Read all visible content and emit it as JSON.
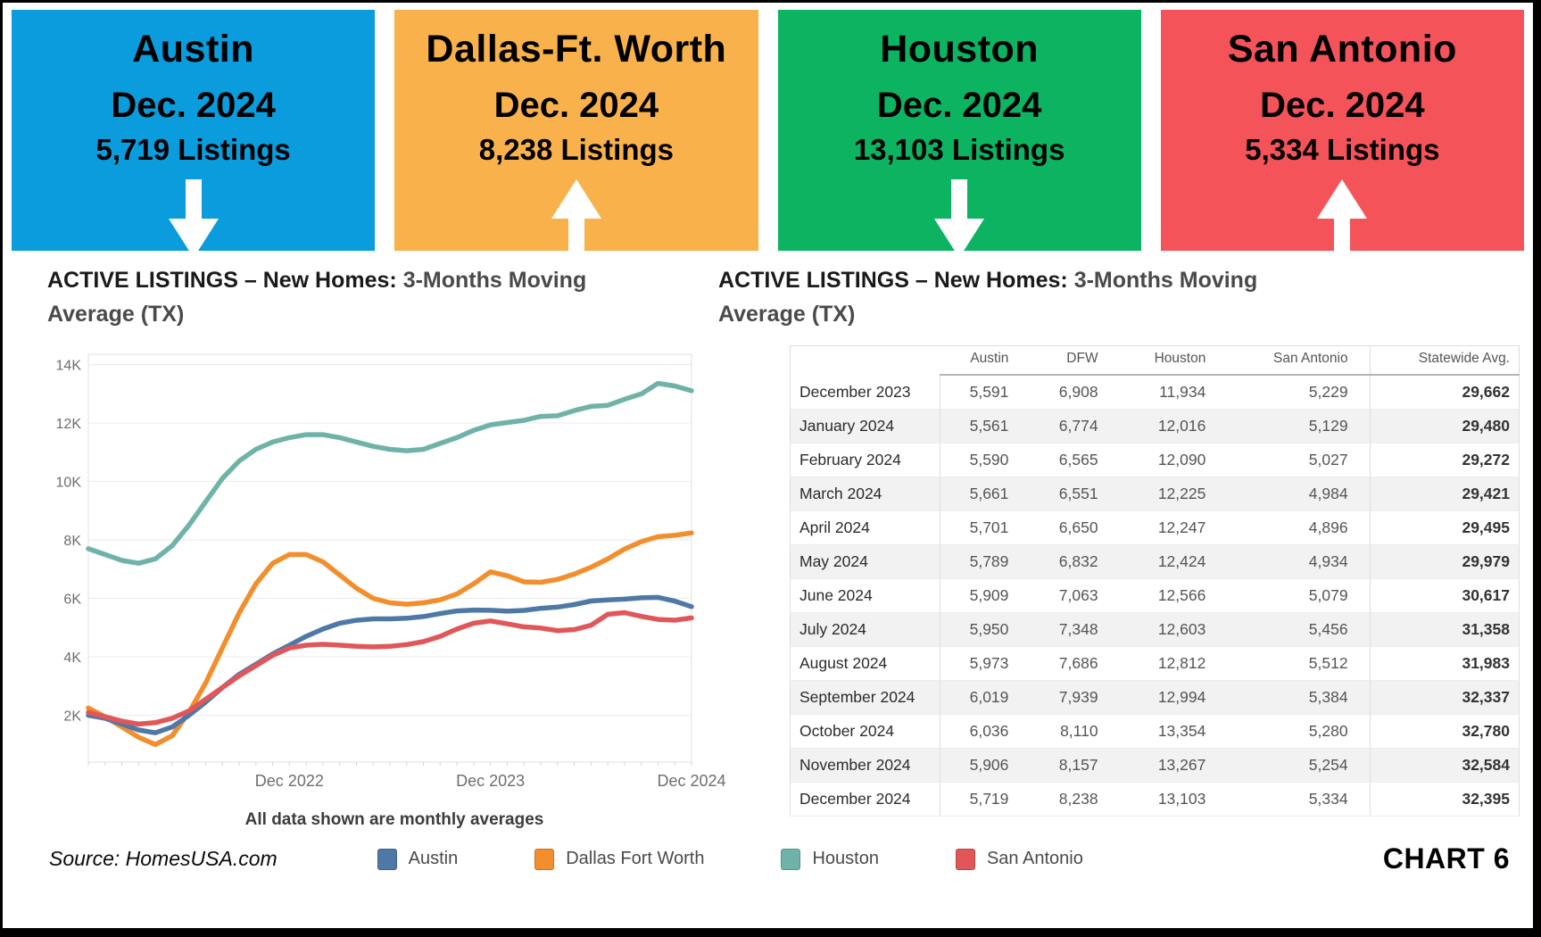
{
  "header_boxes": [
    {
      "city": "Austin",
      "date": "Dec. 2024",
      "listings": "5,719 Listings",
      "direction": "down",
      "color": "#0A9CDC"
    },
    {
      "city": "Dallas-Ft. Worth",
      "date": "Dec. 2024",
      "listings": "8,238 Listings",
      "direction": "up",
      "color": "#F9B24B"
    },
    {
      "city": "Houston",
      "date": "Dec. 2024",
      "listings": "13,103 Listings",
      "direction": "down",
      "color": "#0CB462"
    },
    {
      "city": "San Antonio",
      "date": "Dec. 2024",
      "listings": "5,334 Listings",
      "direction": "up",
      "color": "#F5535A"
    }
  ],
  "left_panel": {
    "title_main": "ACTIVE LISTINGS – New Homes:",
    "title_sub": " 3-Months  Moving Average (TX)",
    "caption": "All data shown are monthly averages"
  },
  "right_panel": {
    "title_main": "ACTIVE LISTINGS – New Homes:",
    "title_sub": " 3-Months  Moving Average (TX)"
  },
  "table": {
    "headers": [
      "",
      "Austin",
      "DFW",
      "Houston",
      "San Antonio",
      "Statewide Avg."
    ],
    "rows": [
      {
        "month": "December 2023",
        "values": [
          "5,591",
          "6,908",
          "11,934",
          "5,229",
          "29,662"
        ]
      },
      {
        "month": "January 2024",
        "values": [
          "5,561",
          "6,774",
          "12,016",
          "5,129",
          "29,480"
        ]
      },
      {
        "month": "February 2024",
        "values": [
          "5,590",
          "6,565",
          "12,090",
          "5,027",
          "29,272"
        ]
      },
      {
        "month": "March 2024",
        "values": [
          "5,661",
          "6,551",
          "12,225",
          "4,984",
          "29,421"
        ]
      },
      {
        "month": "April 2024",
        "values": [
          "5,701",
          "6,650",
          "12,247",
          "4,896",
          "29,495"
        ]
      },
      {
        "month": "May 2024",
        "values": [
          "5,789",
          "6,832",
          "12,424",
          "4,934",
          "29,979"
        ]
      },
      {
        "month": "June 2024",
        "values": [
          "5,909",
          "7,063",
          "12,566",
          "5,079",
          "30,617"
        ]
      },
      {
        "month": "July 2024",
        "values": [
          "5,950",
          "7,348",
          "12,603",
          "5,456",
          "31,358"
        ]
      },
      {
        "month": "August 2024",
        "values": [
          "5,973",
          "7,686",
          "12,812",
          "5,512",
          "31,983"
        ]
      },
      {
        "month": "September 2024",
        "values": [
          "6,019",
          "7,939",
          "12,994",
          "5,384",
          "32,337"
        ]
      },
      {
        "month": "October 2024",
        "values": [
          "6,036",
          "8,110",
          "13,354",
          "5,280",
          "32,780"
        ]
      },
      {
        "month": "November 2024",
        "values": [
          "5,906",
          "8,157",
          "13,267",
          "5,254",
          "32,584"
        ]
      },
      {
        "month": "December 2024",
        "values": [
          "5,719",
          "8,238",
          "13,103",
          "5,334",
          "32,395"
        ]
      }
    ]
  },
  "chart_data": {
    "type": "line",
    "title": "ACTIVE LISTINGS – New Homes: 3-Months Moving Average (TX)",
    "xlabel": "",
    "ylabel": "",
    "ylim": [
      400,
      14350
    ],
    "ytick_values": [
      2000,
      4000,
      6000,
      8000,
      10000,
      12000,
      14000
    ],
    "ytick_labels": [
      "2K",
      "4K",
      "6K",
      "8K",
      "10K",
      "12K",
      "14K"
    ],
    "grid": "horizontal",
    "legend_position": "bottom",
    "x_count": 37,
    "x_months": [
      "Dec 2021",
      "Jan 2022",
      "Feb 2022",
      "Mar 2022",
      "Apr 2022",
      "May 2022",
      "Jun 2022",
      "Jul 2022",
      "Aug 2022",
      "Sep 2022",
      "Oct 2022",
      "Nov 2022",
      "Dec 2022",
      "Jan 2023",
      "Feb 2023",
      "Mar 2023",
      "Apr 2023",
      "May 2023",
      "Jun 2023",
      "Jul 2023",
      "Aug 2023",
      "Sep 2023",
      "Oct 2023",
      "Nov 2023",
      "Dec 2023",
      "Jan 2024",
      "Feb 2024",
      "Mar 2024",
      "Apr 2024",
      "May 2024",
      "Jun 2024",
      "Jul 2024",
      "Aug 2024",
      "Sep 2024",
      "Oct 2024",
      "Nov 2024",
      "Dec 2024"
    ],
    "x_ticks": [
      {
        "i": 12,
        "label": "Dec 2022"
      },
      {
        "i": 24,
        "label": "Dec 2023"
      },
      {
        "i": 36,
        "label": "Dec 2024"
      }
    ],
    "series": [
      {
        "name": "Houston",
        "color": "#6FB3A8",
        "values": [
          7700,
          7500,
          7300,
          7200,
          7350,
          7800,
          8500,
          9300,
          10100,
          10700,
          11100,
          11350,
          11500,
          11600,
          11600,
          11500,
          11350,
          11200,
          11100,
          11050,
          11100,
          11300,
          11500,
          11750,
          11934,
          12016,
          12090,
          12225,
          12247,
          12424,
          12566,
          12603,
          12812,
          12994,
          13354,
          13267,
          13103
        ]
      },
      {
        "name": "Dallas Fort Worth",
        "color": "#F28E2B",
        "values": [
          2250,
          1950,
          1600,
          1250,
          1000,
          1300,
          2100,
          3100,
          4300,
          5500,
          6500,
          7200,
          7500,
          7500,
          7250,
          6800,
          6350,
          6000,
          5850,
          5800,
          5850,
          5950,
          6150,
          6500,
          6908,
          6774,
          6565,
          6551,
          6650,
          6832,
          7063,
          7348,
          7686,
          7939,
          8110,
          8157,
          8238
        ]
      },
      {
        "name": "Austin",
        "color": "#4E79A7",
        "values": [
          2000,
          1900,
          1700,
          1500,
          1400,
          1600,
          2000,
          2450,
          2950,
          3400,
          3750,
          4100,
          4400,
          4700,
          4950,
          5150,
          5250,
          5300,
          5300,
          5320,
          5380,
          5480,
          5570,
          5600,
          5591,
          5561,
          5590,
          5661,
          5701,
          5789,
          5909,
          5950,
          5973,
          6019,
          6036,
          5906,
          5719
        ]
      },
      {
        "name": "San Antonio",
        "color": "#E15759",
        "values": [
          2100,
          1950,
          1800,
          1700,
          1750,
          1900,
          2150,
          2550,
          2950,
          3350,
          3700,
          4050,
          4300,
          4400,
          4430,
          4400,
          4360,
          4340,
          4360,
          4420,
          4520,
          4700,
          4950,
          5150,
          5229,
          5129,
          5027,
          4984,
          4896,
          4934,
          5079,
          5456,
          5512,
          5384,
          5280,
          5254,
          5334
        ]
      }
    ]
  },
  "legend": {
    "items": [
      {
        "label": "Austin",
        "color": "#4E79A7"
      },
      {
        "label": "Dallas Fort Worth",
        "color": "#F28E2B"
      },
      {
        "label": "Houston",
        "color": "#6FB3A8"
      },
      {
        "label": "San Antonio",
        "color": "#E15759"
      }
    ]
  },
  "footer": {
    "source": "Source: HomesUSA.com",
    "chart_label": "CHART 6"
  }
}
